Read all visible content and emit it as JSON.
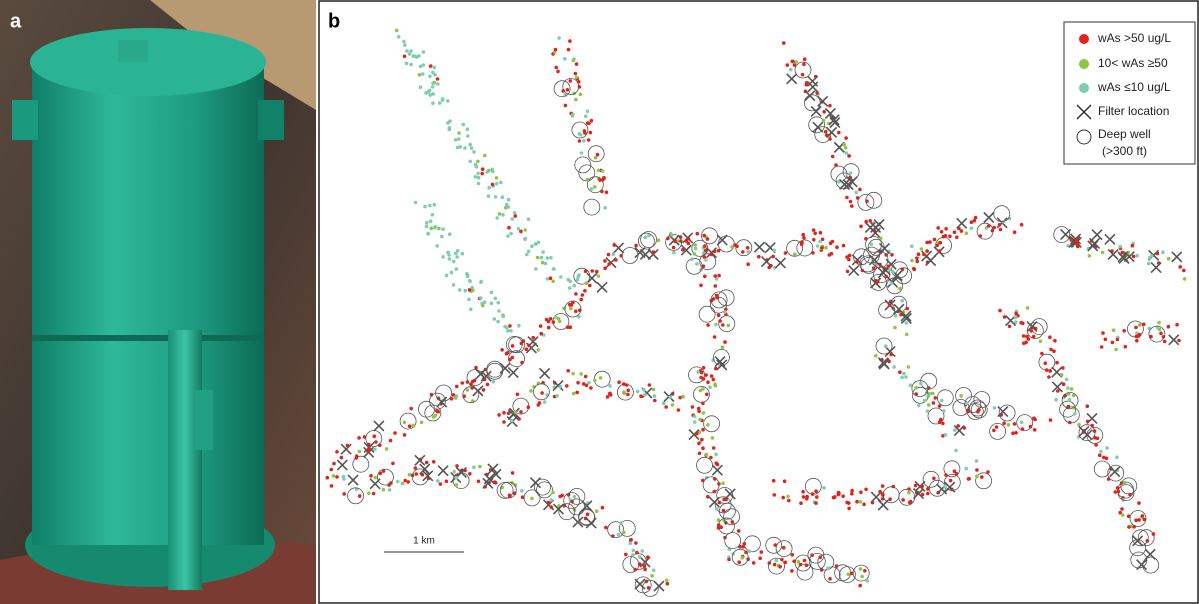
{
  "panel_a": {
    "label": "a"
  },
  "panel_b": {
    "label": "b",
    "legend": {
      "items": [
        "wAs >50 ug/L",
        "10< wAs ≥50",
        "wAs ≤10 ug/L",
        "Filter location",
        "Deep well",
        "(>300 ft)"
      ]
    },
    "scale_bar": "1 km"
  }
}
